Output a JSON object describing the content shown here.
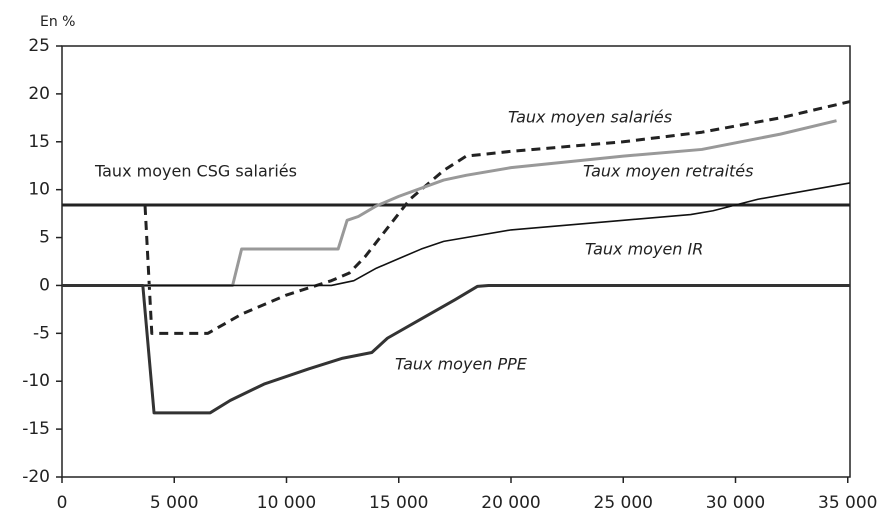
{
  "chart_data": {
    "type": "line",
    "y_label": "En %",
    "xlim": [
      0,
      35100
    ],
    "ylim": [
      -20,
      25
    ],
    "xticks": [
      0,
      {
        "value": 5000,
        "label": "5 000"
      },
      {
        "value": 10000,
        "label": "10 000"
      },
      {
        "value": 15000,
        "label": "15 000"
      },
      {
        "value": 20000,
        "label": "20 000"
      },
      {
        "value": 25000,
        "label": "25 000"
      },
      {
        "value": 30000,
        "label": "30 000"
      },
      {
        "value": 35000,
        "label": "35 000"
      }
    ],
    "yticks": [
      -20,
      -15,
      -10,
      -5,
      0,
      5,
      10,
      15,
      20,
      25
    ],
    "series": [
      {
        "name": "Taux moyen CSG salariés",
        "color": "#222222",
        "dashed": false,
        "x": [
          0,
          35100
        ],
        "values": [
          8.4,
          8.4
        ]
      },
      {
        "name": "Taux moyen salariés",
        "color": "#222222",
        "dashed": true,
        "x": [
          3700,
          4000,
          6500,
          8000,
          10000,
          12000,
          12800,
          13500,
          14500,
          15500,
          17000,
          18000,
          20000,
          25000,
          28500,
          32000,
          35100
        ],
        "values": [
          8.3,
          -5,
          -5,
          -3,
          -1,
          0.5,
          1.3,
          3,
          6,
          9,
          12,
          13.5,
          14,
          15,
          16,
          17.5,
          19.2
        ]
      },
      {
        "name": "Taux moyen retraités",
        "color": "#999999",
        "dashed": false,
        "x": [
          1000,
          7600,
          8000,
          12300,
          12700,
          13200,
          14000,
          15000,
          17000,
          18000,
          20000,
          25000,
          28500,
          32000,
          34500
        ],
        "values": [
          0,
          0,
          3.8,
          3.8,
          6.8,
          7.2,
          8.3,
          9.3,
          11,
          11.5,
          12.3,
          13.5,
          14.2,
          15.8,
          17.2
        ]
      },
      {
        "name": "Taux moyen IR",
        "color": "#111111",
        "dashed": false,
        "x": [
          0,
          12000,
          13000,
          14000,
          15000,
          16000,
          17000,
          20000,
          25000,
          28000,
          29000,
          31000,
          35100
        ],
        "values": [
          0,
          0,
          0.5,
          1.8,
          2.8,
          3.8,
          4.6,
          5.8,
          6.8,
          7.4,
          7.8,
          9.0,
          10.7
        ]
      },
      {
        "name": "Taux moyen PPE",
        "color": "#333333",
        "dashed": false,
        "x": [
          0,
          3600,
          4100,
          6600,
          7500,
          9000,
          11000,
          12500,
          13800,
          14500,
          16000,
          17500,
          18500,
          19000,
          35100
        ],
        "values": [
          0,
          0,
          -13.3,
          -13.3,
          -12,
          -10.3,
          -8.7,
          -7.6,
          -7,
          -5.5,
          -3.5,
          -1.5,
          -0.1,
          0,
          0
        ]
      }
    ]
  }
}
